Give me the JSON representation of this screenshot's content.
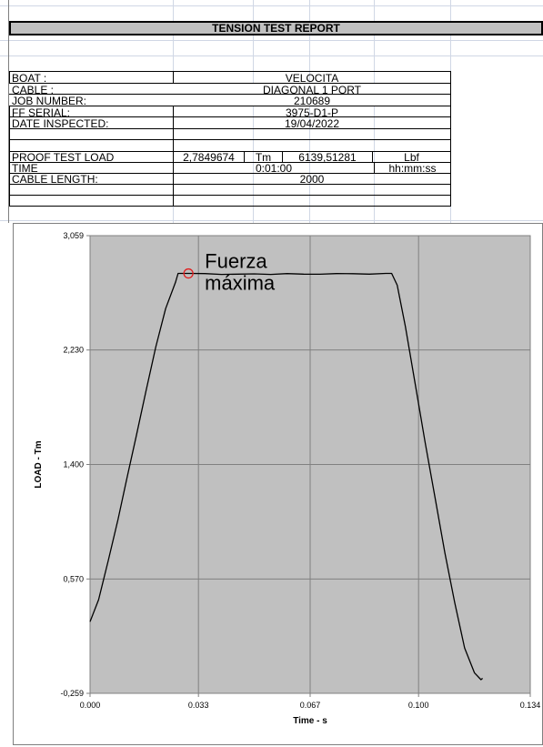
{
  "report_title": "TENSION TEST REPORT",
  "fields": {
    "boat": {
      "label": "BOAT :",
      "value": "VELOCITA"
    },
    "cable": {
      "label": "CABLE :",
      "value": "DIAGONAL 1 PORT"
    },
    "job_number": {
      "label": "JOB NUMBER:",
      "value": "210689"
    },
    "ff_serial": {
      "label": "FF SERIAL:",
      "value": "3975-D1-P"
    },
    "date_inspected": {
      "label": "DATE INSPECTED:",
      "value": "19/04/2022"
    },
    "proof_test_load": {
      "label": "PROOF TEST LOAD",
      "value_tm": "2,7849674",
      "unit_tm": "Tm",
      "value_lbf": "6139,51281",
      "unit_lbf": "Lbf"
    },
    "time": {
      "label": "TIME",
      "value": "0:01:00",
      "unit": "hh:mm:ss"
    },
    "cable_length": {
      "label": "CABLE LENGTH:",
      "value": "2000"
    }
  },
  "chart_data": {
    "type": "line",
    "xlabel": "Time - s",
    "ylabel": "LOAD - Tm",
    "xlim": [
      0.0,
      0.134
    ],
    "ylim": [
      -0.259,
      3.059
    ],
    "xticks": [
      0.0,
      0.033,
      0.067,
      0.1,
      0.134
    ],
    "xtick_labels": [
      "0.000",
      "0.033",
      "0.067",
      "0.100",
      "0.134"
    ],
    "yticks": [
      -0.259,
      0.57,
      1.4,
      2.23,
      3.059
    ],
    "ytick_labels": [
      "-0,259",
      "0,570",
      "1,400",
      "2,230",
      "3,059"
    ],
    "grid": true,
    "background": "#c0c0c0",
    "line_color": "#000000",
    "series": [
      {
        "x": [
          0.0,
          0.0026,
          0.0055,
          0.0085,
          0.0112,
          0.014,
          0.017,
          0.02,
          0.023,
          0.026,
          0.0268,
          0.03,
          0.035,
          0.04,
          0.045,
          0.05,
          0.055,
          0.06,
          0.065,
          0.07,
          0.075,
          0.08,
          0.085,
          0.09,
          0.0918,
          0.0935,
          0.096,
          0.099,
          0.102,
          0.105,
          0.108,
          0.111,
          0.114,
          0.117,
          0.119,
          0.1195
        ],
        "y": [
          0.26,
          0.42,
          0.7,
          1.0,
          1.3,
          1.6,
          1.93,
          2.25,
          2.53,
          2.72,
          2.785,
          2.785,
          2.784,
          2.778,
          2.78,
          2.782,
          2.778,
          2.784,
          2.78,
          2.779,
          2.784,
          2.783,
          2.78,
          2.785,
          2.785,
          2.7,
          2.4,
          1.98,
          1.56,
          1.16,
          0.76,
          0.4,
          0.07,
          -0.11,
          -0.16,
          -0.15
        ]
      }
    ],
    "annotation": {
      "text_line1": "Fuerza",
      "text_line2": "máxima",
      "x": 0.0305,
      "y": 2.785,
      "marker_color": "#e02020"
    }
  }
}
